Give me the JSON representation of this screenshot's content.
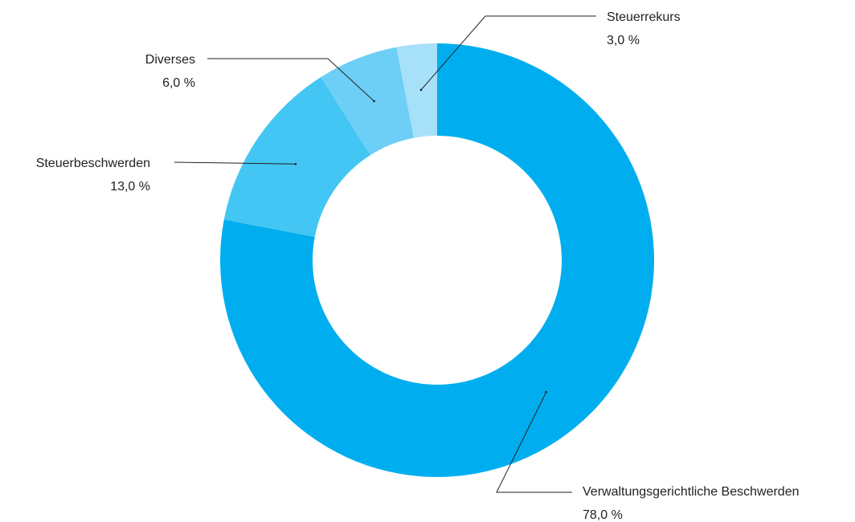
{
  "chart_data": {
    "type": "donut",
    "categories": [
      "Verwaltungsgerichtliche Beschwerden",
      "Steuerbeschwerden",
      "Diverses",
      "Steuerrekurs"
    ],
    "values": [
      78,
      13,
      6,
      3
    ],
    "value_labels": [
      "78,0 %",
      "13,0 %",
      "6,0 %",
      "3,0 %"
    ],
    "colors": [
      "#00aeef",
      "#43c6f4",
      "#6dcff6",
      "#a7e0f9"
    ]
  }
}
